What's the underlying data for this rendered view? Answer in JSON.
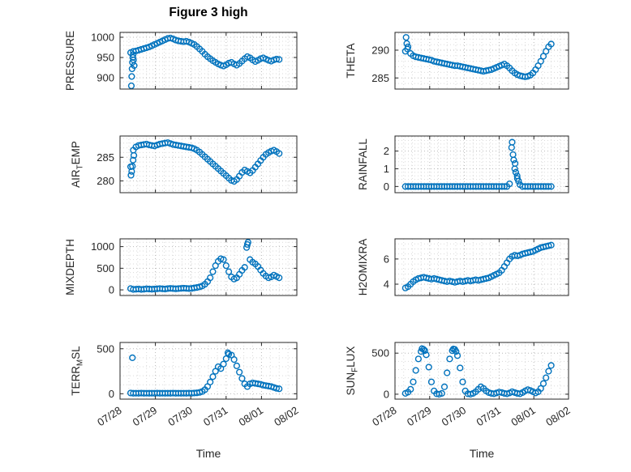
{
  "chart_data": {
    "type": "scatter",
    "title": "Figure 3 high",
    "xlabel": "Time",
    "x_tick_labels": [
      "07/28",
      "07/29",
      "07/30",
      "07/31",
      "08/01",
      "08/02"
    ],
    "xlim_days": [
      0,
      5
    ],
    "marker_color": "#0072BD",
    "axis_color": "#262626",
    "grid": true,
    "legend": "none",
    "x_shared": [
      0.3,
      0.375,
      0.45,
      0.525,
      0.6,
      0.675,
      0.75,
      0.825,
      0.9,
      0.975,
      1.05,
      1.125,
      1.2,
      1.275,
      1.35,
      1.425,
      1.5,
      1.575,
      1.65,
      1.725,
      1.8,
      1.875,
      1.95,
      2.025,
      2.1,
      2.175,
      2.25,
      2.325,
      2.4,
      2.475,
      2.55,
      2.625,
      2.7,
      2.775,
      2.85,
      2.925,
      3.0,
      3.075,
      3.15,
      3.225,
      3.3,
      3.375,
      3.45,
      3.525,
      3.6,
      3.675,
      3.75,
      3.825,
      3.9,
      3.975,
      4.05,
      4.125,
      4.2,
      4.275,
      4.35,
      4.425,
      4.5
    ],
    "subplots": [
      {
        "name": "PRESSURE",
        "ylabel_parts": [
          {
            "t": "PRESSURE",
            "sub": false
          }
        ],
        "yticks": [
          900,
          950,
          1000
        ],
        "ylim": [
          872,
          1012
        ],
        "y": [
          962,
          965,
          966,
          968,
          970,
          972,
          974,
          976,
          979,
          982,
          985,
          988,
          991,
          994,
          997,
          998,
          996,
          993,
          991,
          990,
          989,
          990,
          988,
          985,
          982,
          977,
          971,
          965,
          958,
          952,
          947,
          942,
          938,
          934,
          931,
          929,
          932,
          936,
          938,
          934,
          931,
          935,
          941,
          947,
          952,
          949,
          944,
          940,
          943,
          947,
          949,
          946,
          943,
          941,
          944,
          946,
          945
        ],
        "extra": [
          [
            0.32,
            880
          ],
          [
            0.33,
            903
          ],
          [
            0.34,
            922
          ],
          [
            0.35,
            938
          ],
          [
            0.36,
            950
          ],
          [
            0.37,
            957
          ],
          [
            0.38,
            944
          ],
          [
            0.4,
            930
          ]
        ]
      },
      {
        "name": "AIR_TEMP",
        "ylabel_parts": [
          {
            "t": "AIR",
            "sub": false
          },
          {
            "t": "T",
            "sub": true
          },
          {
            "t": "EMP",
            "sub": false
          }
        ],
        "yticks": [
          280,
          285
        ],
        "ylim": [
          277.5,
          289.5
        ],
        "y": [
          283.0,
          286.5,
          287.2,
          287.5,
          287.6,
          287.7,
          287.8,
          287.6,
          287.5,
          287.4,
          287.6,
          287.8,
          287.9,
          288.0,
          288.1,
          287.9,
          287.7,
          287.6,
          287.5,
          287.4,
          287.3,
          287.2,
          287.1,
          287.0,
          286.8,
          286.5,
          286.1,
          285.6,
          285.1,
          284.6,
          284.1,
          283.6,
          283.1,
          282.6,
          282.1,
          281.6,
          281.1,
          280.6,
          280.1,
          279.9,
          280.3,
          281.0,
          281.8,
          282.3,
          282.0,
          281.7,
          282.2,
          282.9,
          283.6,
          284.3,
          285.0,
          285.6,
          286.0,
          286.3,
          286.5,
          286.2,
          285.8
        ],
        "extra": [
          [
            0.31,
            281.2
          ],
          [
            0.33,
            282.0
          ],
          [
            0.35,
            283.1
          ],
          [
            0.37,
            284.4
          ],
          [
            0.39,
            285.4
          ]
        ]
      },
      {
        "name": "MIXDEPTH",
        "ylabel_parts": [
          {
            "t": "MIXDEPTH",
            "sub": false
          }
        ],
        "yticks": [
          0,
          500,
          1000
        ],
        "ylim": [
          -130,
          1180
        ],
        "y": [
          30,
          10,
          15,
          20,
          10,
          15,
          25,
          20,
          15,
          20,
          25,
          30,
          25,
          20,
          30,
          35,
          30,
          25,
          30,
          35,
          40,
          35,
          30,
          35,
          45,
          55,
          70,
          90,
          130,
          190,
          280,
          420,
          560,
          660,
          720,
          700,
          560,
          420,
          300,
          250,
          280,
          360,
          450,
          520,
          1050,
          700,
          640,
          600,
          540,
          460,
          380,
          320,
          280,
          300,
          340,
          310,
          280
        ],
        "extra": [
          [
            3.62,
            1100
          ],
          [
            3.58,
            980
          ]
        ]
      },
      {
        "name": "TERR_MSL",
        "ylabel_parts": [
          {
            "t": "TERR",
            "sub": false
          },
          {
            "t": "M",
            "sub": true
          },
          {
            "t": "SL",
            "sub": false
          }
        ],
        "yticks": [
          0,
          500
        ],
        "ylim": [
          -60,
          570
        ],
        "y": [
          8,
          5,
          6,
          5,
          7,
          5,
          6,
          5,
          6,
          5,
          7,
          5,
          6,
          5,
          6,
          5,
          7,
          5,
          6,
          5,
          6,
          5,
          7,
          6,
          8,
          10,
          15,
          25,
          45,
          80,
          130,
          190,
          250,
          300,
          280,
          330,
          390,
          440,
          430,
          380,
          310,
          240,
          170,
          110,
          80,
          110,
          120,
          115,
          110,
          105,
          95,
          90,
          85,
          80,
          70,
          60,
          55
        ],
        "extra": [
          [
            0.35,
            400
          ],
          [
            3.05,
            455
          ]
        ]
      },
      {
        "name": "THETA",
        "ylabel_parts": [
          {
            "t": "THETA",
            "sub": false
          }
        ],
        "yticks": [
          285,
          290
        ],
        "ylim": [
          283,
          293.2
        ],
        "y": [
          289.8,
          290.6,
          289.4,
          289.0,
          288.8,
          288.7,
          288.6,
          288.5,
          288.4,
          288.3,
          288.2,
          288.0,
          287.9,
          287.8,
          287.7,
          287.6,
          287.5,
          287.4,
          287.3,
          287.2,
          287.2,
          287.1,
          287.0,
          286.9,
          286.8,
          286.7,
          286.6,
          286.5,
          286.4,
          286.3,
          286.2,
          286.3,
          286.4,
          286.5,
          286.7,
          286.9,
          287.1,
          287.3,
          287.5,
          287.2,
          286.8,
          286.3,
          285.9,
          285.6,
          285.4,
          285.3,
          285.2,
          285.3,
          285.5,
          285.9,
          286.5,
          287.2,
          288.0,
          288.9,
          289.8,
          290.6,
          291.1
        ],
        "extra": [
          [
            0.32,
            292.3
          ],
          [
            0.34,
            291.2
          ],
          [
            0.36,
            290.2
          ]
        ]
      },
      {
        "name": "RAINFALL",
        "ylabel_parts": [
          {
            "t": "RAINFALL",
            "sub": false
          }
        ],
        "yticks": [
          0,
          1,
          2
        ],
        "ylim": [
          -0.35,
          2.85
        ],
        "y": [
          0,
          0,
          0,
          0,
          0,
          0,
          0,
          0,
          0,
          0,
          0,
          0,
          0,
          0,
          0,
          0,
          0,
          0,
          0,
          0,
          0,
          0,
          0,
          0,
          0,
          0,
          0,
          0,
          0,
          0,
          0,
          0,
          0,
          0,
          0,
          0,
          0,
          0,
          0,
          0,
          0.15,
          2.5,
          1.0,
          0.45,
          0.1,
          0,
          0,
          0,
          0,
          0,
          0,
          0,
          0,
          0,
          0,
          0,
          0
        ],
        "extra": [
          [
            3.36,
            2.2
          ],
          [
            3.4,
            1.8
          ],
          [
            3.42,
            1.5
          ],
          [
            3.46,
            1.3
          ],
          [
            3.48,
            0.8
          ],
          [
            3.52,
            0.6
          ],
          [
            3.56,
            0.3
          ]
        ]
      },
      {
        "name": "H2OMIXRA",
        "ylabel_parts": [
          {
            "t": "H2OMIXRA",
            "sub": false
          }
        ],
        "yticks": [
          4,
          6
        ],
        "ylim": [
          3.1,
          7.6
        ],
        "y": [
          3.7,
          3.8,
          4.0,
          4.2,
          4.35,
          4.45,
          4.5,
          4.55,
          4.5,
          4.45,
          4.4,
          4.45,
          4.4,
          4.35,
          4.3,
          4.25,
          4.2,
          4.25,
          4.2,
          4.15,
          4.2,
          4.25,
          4.2,
          4.25,
          4.3,
          4.25,
          4.3,
          4.35,
          4.3,
          4.35,
          4.4,
          4.45,
          4.5,
          4.6,
          4.7,
          4.8,
          4.9,
          5.1,
          5.4,
          5.7,
          6.0,
          6.2,
          6.3,
          6.25,
          6.3,
          6.4,
          6.45,
          6.5,
          6.55,
          6.6,
          6.7,
          6.8,
          6.9,
          6.95,
          7.0,
          7.05,
          7.1
        ],
        "extra": []
      },
      {
        "name": "SUN_FLUX",
        "ylabel_parts": [
          {
            "t": "SUN",
            "sub": false
          },
          {
            "t": "F",
            "sub": true
          },
          {
            "t": "LUX",
            "sub": false
          }
        ],
        "yticks": [
          0,
          500
        ],
        "ylim": [
          -60,
          630
        ],
        "y": [
          10,
          25,
          60,
          150,
          290,
          430,
          520,
          545,
          480,
          330,
          150,
          40,
          5,
          0,
          10,
          90,
          260,
          430,
          530,
          545,
          470,
          320,
          150,
          40,
          5,
          0,
          10,
          30,
          60,
          90,
          70,
          40,
          20,
          10,
          5,
          15,
          25,
          20,
          10,
          5,
          15,
          30,
          20,
          10,
          5,
          20,
          40,
          55,
          45,
          30,
          15,
          30,
          70,
          130,
          200,
          280,
          350
        ],
        "extra": [
          [
            0.78,
            555
          ],
          [
            0.86,
            530
          ],
          [
            1.68,
            550
          ],
          [
            1.76,
            520
          ]
        ]
      }
    ]
  }
}
